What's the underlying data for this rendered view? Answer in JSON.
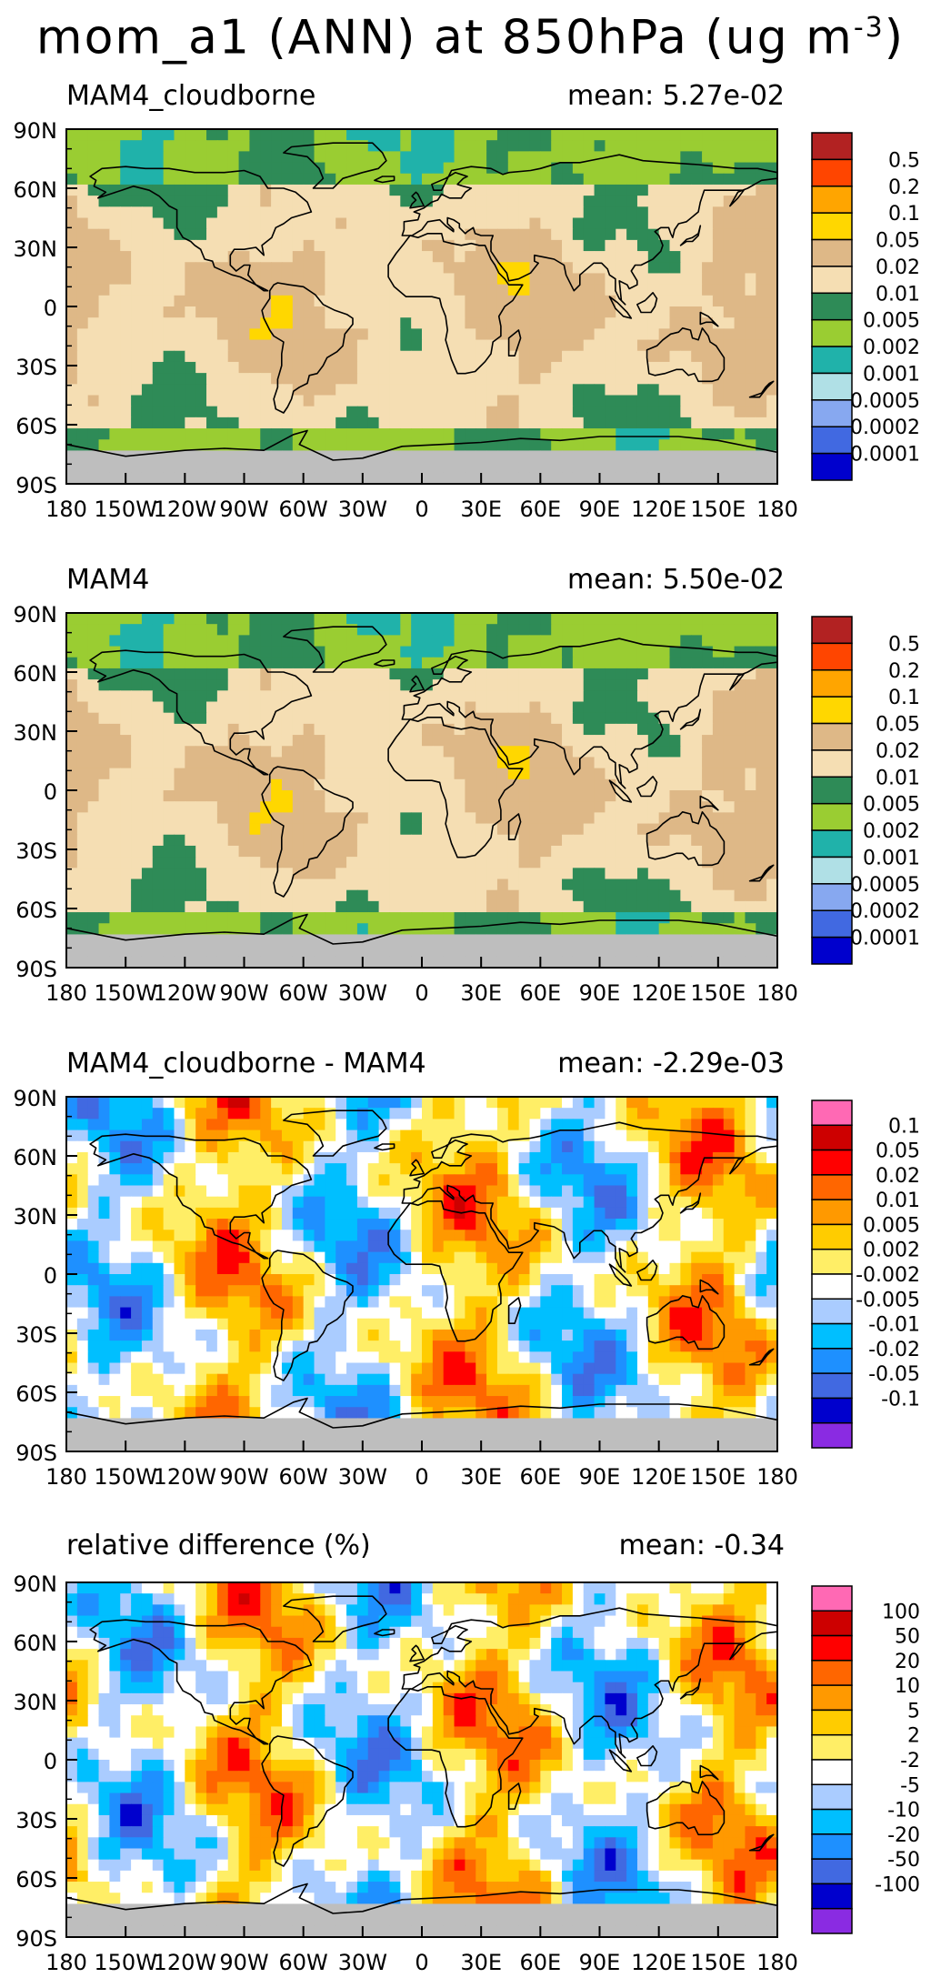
{
  "figure": {
    "title_prefix": "mom_a1 (ANN) at 850hPa (ug m",
    "title_exponent": "-3",
    "title_suffix": ")"
  },
  "chart_data": [
    {
      "type": "heatmap",
      "title": "MAM4_cloudborne",
      "mean_label": "mean: 5.27e-02",
      "mean": 0.0527,
      "x_ticks": [
        "180",
        "150W",
        "120W",
        "90W",
        "60W",
        "30W",
        "0",
        "30E",
        "60E",
        "90E",
        "120E",
        "150E",
        "180"
      ],
      "y_ticks": [
        "90N",
        "60N",
        "30N",
        "0",
        "30S",
        "60S",
        "90S"
      ],
      "colorbar": {
        "labels": [
          "0.5",
          "0.2",
          "0.1",
          "0.05",
          "0.02",
          "0.01",
          "0.005",
          "0.002",
          "0.001",
          "0.0005",
          "0.0002",
          "0.0001"
        ],
        "colors": [
          "#b22222",
          "#ff4500",
          "#ffa500",
          "#ffd700",
          "#deb887",
          "#f5deb3",
          "#2e8b57",
          "#9acd32",
          "#20b2aa",
          "#b0e0e6",
          "#87a8f0",
          "#4169e1",
          "#0000cd"
        ]
      },
      "missing_color": "#bebebe",
      "color_scheme": "sequential",
      "pattern": [
        0.07,
        0.025,
        0.035,
        0.3
      ]
    },
    {
      "type": "heatmap",
      "title": "MAM4",
      "mean_label": "mean: 5.50e-02",
      "mean": 0.055,
      "x_ticks": [
        "180",
        "150W",
        "120W",
        "90W",
        "60W",
        "30W",
        "0",
        "30E",
        "60E",
        "90E",
        "120E",
        "150E",
        "180"
      ],
      "y_ticks": [
        "90N",
        "60N",
        "30N",
        "0",
        "30S",
        "60S",
        "90S"
      ],
      "colorbar": {
        "labels": [
          "0.5",
          "0.2",
          "0.1",
          "0.05",
          "0.02",
          "0.01",
          "0.005",
          "0.002",
          "0.001",
          "0.0005",
          "0.0002",
          "0.0001"
        ],
        "colors": [
          "#b22222",
          "#ff4500",
          "#ffa500",
          "#ffd700",
          "#deb887",
          "#f5deb3",
          "#2e8b57",
          "#9acd32",
          "#20b2aa",
          "#b0e0e6",
          "#87a8f0",
          "#4169e1",
          "#0000cd"
        ]
      },
      "missing_color": "#bebebe",
      "color_scheme": "sequential",
      "pattern": [
        0.072,
        0.026,
        0.033,
        0.31
      ]
    },
    {
      "type": "heatmap",
      "title": "MAM4_cloudborne - MAM4",
      "mean_label": "mean: -2.29e-03",
      "mean": -0.00229,
      "x_ticks": [
        "180",
        "150W",
        "120W",
        "90W",
        "60W",
        "30W",
        "0",
        "30E",
        "60E",
        "90E",
        "120E",
        "150E",
        "180"
      ],
      "y_ticks": [
        "90N",
        "60N",
        "30N",
        "0",
        "30S",
        "60S",
        "90S"
      ],
      "colorbar": {
        "labels": [
          "0.1",
          "0.05",
          "0.02",
          "0.01",
          "0.005",
          "0.002",
          "-0.002",
          "-0.005",
          "-0.01",
          "-0.02",
          "-0.05",
          "-0.1"
        ],
        "colors": [
          "#ff69b4",
          "#cd0000",
          "#ff0000",
          "#ff6600",
          "#ff9900",
          "#ffcc00",
          "#ffee66",
          "#ffffff",
          "#aaccff",
          "#00bfff",
          "#1e90ff",
          "#4169e1",
          "#0000cd",
          "#8a2be2"
        ]
      },
      "missing_color": "#bebebe",
      "color_scheme": "diverging",
      "pattern": [
        0.11,
        0.37,
        0.23,
        0.52
      ]
    },
    {
      "type": "heatmap",
      "title": "relative difference (%)",
      "mean_label": "mean: -0.34",
      "mean": -0.34,
      "x_ticks": [
        "180",
        "150W",
        "120W",
        "90W",
        "60W",
        "30W",
        "0",
        "30E",
        "60E",
        "90E",
        "120E",
        "150E",
        "180"
      ],
      "y_ticks": [
        "90N",
        "60N",
        "30N",
        "0",
        "30S",
        "60S",
        "90S"
      ],
      "colorbar": {
        "labels": [
          "100",
          "50",
          "20",
          "10",
          "5",
          "2",
          "-2",
          "-5",
          "-10",
          "-20",
          "-50",
          "-100"
        ],
        "colors": [
          "#ff69b4",
          "#cd0000",
          "#ff0000",
          "#ff6600",
          "#ff9900",
          "#ffcc00",
          "#ffee66",
          "#ffffff",
          "#aaccff",
          "#00bfff",
          "#1e90ff",
          "#4169e1",
          "#0000cd",
          "#8a2be2"
        ]
      },
      "missing_color": "#bebebe",
      "color_scheme": "diverging",
      "pattern": [
        0.09,
        0.41,
        0.19,
        0.61
      ]
    }
  ]
}
